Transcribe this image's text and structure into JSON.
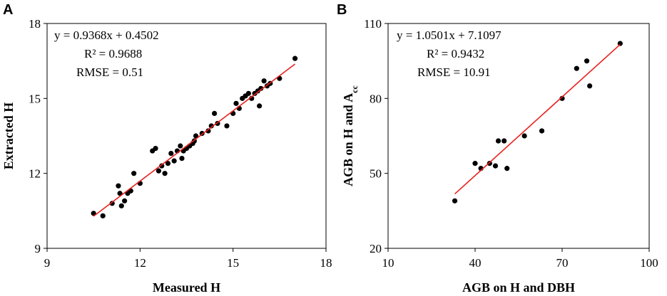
{
  "chart_data": [
    {
      "type": "scatter",
      "panel_label": "A",
      "xlabel": "Measured H",
      "ylabel": "Extracted H",
      "xlim": [
        9,
        18
      ],
      "ylim": [
        9,
        18
      ],
      "xticks": [
        "9",
        "12",
        "15",
        "18"
      ],
      "yticks": [
        "9",
        "12",
        "15",
        "18"
      ],
      "equation": "y = 0.9368x + 0.4502",
      "r2": "R² = 0.9688",
      "rmse": "RMSE = 0.51",
      "fit": {
        "slope": 0.9368,
        "intercept": 0.4502,
        "x_range": [
          10.5,
          17.0
        ]
      },
      "line_color": "#e8201e",
      "point_color": "#000000",
      "points": [
        [
          10.5,
          10.4
        ],
        [
          10.8,
          10.3
        ],
        [
          11.1,
          10.8
        ],
        [
          11.3,
          11.5
        ],
        [
          11.35,
          11.2
        ],
        [
          11.4,
          10.7
        ],
        [
          11.5,
          10.9
        ],
        [
          11.6,
          11.2
        ],
        [
          11.7,
          11.3
        ],
        [
          11.8,
          12.0
        ],
        [
          12.0,
          11.6
        ],
        [
          12.4,
          12.9
        ],
        [
          12.5,
          13.0
        ],
        [
          12.6,
          12.1
        ],
        [
          12.7,
          12.3
        ],
        [
          12.8,
          12.0
        ],
        [
          12.9,
          12.4
        ],
        [
          13.0,
          12.8
        ],
        [
          13.1,
          12.5
        ],
        [
          13.2,
          12.9
        ],
        [
          13.3,
          13.1
        ],
        [
          13.35,
          12.6
        ],
        [
          13.4,
          12.9
        ],
        [
          13.5,
          13.0
        ],
        [
          13.6,
          13.1
        ],
        [
          13.7,
          13.2
        ],
        [
          13.75,
          13.3
        ],
        [
          13.8,
          13.5
        ],
        [
          14.0,
          13.6
        ],
        [
          14.2,
          13.7
        ],
        [
          14.3,
          13.9
        ],
        [
          14.4,
          14.4
        ],
        [
          14.5,
          14.0
        ],
        [
          14.8,
          13.9
        ],
        [
          15.0,
          14.4
        ],
        [
          15.1,
          14.8
        ],
        [
          15.2,
          14.6
        ],
        [
          15.3,
          15.0
        ],
        [
          15.4,
          15.1
        ],
        [
          15.5,
          15.2
        ],
        [
          15.6,
          15.0
        ],
        [
          15.7,
          15.2
        ],
        [
          15.8,
          15.3
        ],
        [
          15.85,
          14.7
        ],
        [
          15.9,
          15.4
        ],
        [
          16.0,
          15.7
        ],
        [
          16.1,
          15.5
        ],
        [
          16.2,
          15.6
        ],
        [
          16.5,
          15.8
        ],
        [
          17.0,
          16.6
        ]
      ]
    },
    {
      "type": "scatter",
      "panel_label": "B",
      "xlabel": "AGB on H and DBH",
      "ylabel": "AGB on H and A",
      "ylabel_sub": "cc",
      "xlim": [
        10,
        100
      ],
      "ylim": [
        20,
        110
      ],
      "xticks": [
        "10",
        "40",
        "70",
        "100"
      ],
      "yticks": [
        "20",
        "50",
        "80",
        "110"
      ],
      "equation": "y = 1.0501x + 7.1097",
      "r2": "R² = 0.9432",
      "rmse": "RMSE = 10.91",
      "fit": {
        "slope": 1.0501,
        "intercept": 7.1097,
        "x_range": [
          33,
          90
        ]
      },
      "line_color": "#e8201e",
      "point_color": "#000000",
      "points": [
        [
          33,
          39
        ],
        [
          40,
          54
        ],
        [
          42,
          52
        ],
        [
          45,
          54
        ],
        [
          47,
          53
        ],
        [
          48,
          63
        ],
        [
          50,
          63
        ],
        [
          51,
          52
        ],
        [
          57,
          65
        ],
        [
          63,
          67
        ],
        [
          70,
          80
        ],
        [
          75,
          92
        ],
        [
          78.5,
          95
        ],
        [
          79.5,
          85
        ],
        [
          90,
          102
        ]
      ]
    }
  ]
}
